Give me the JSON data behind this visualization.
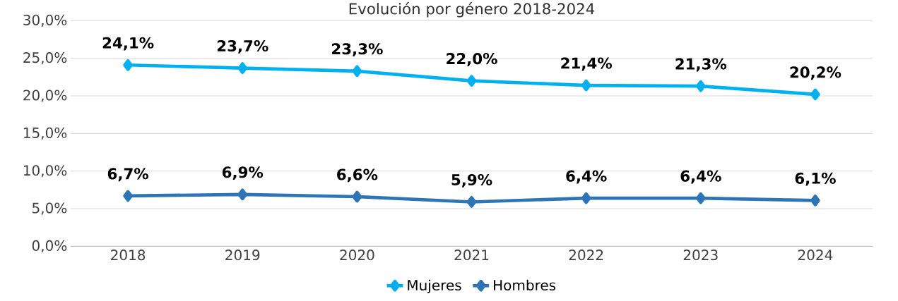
{
  "chart_data": {
    "type": "line",
    "title": "Evolución por género 2018-2024",
    "categories": [
      "2018",
      "2019",
      "2020",
      "2021",
      "2022",
      "2023",
      "2024"
    ],
    "series": [
      {
        "name": "Mujeres",
        "color": "#00b0f0",
        "values": [
          24.1,
          23.7,
          23.3,
          22.0,
          21.4,
          21.3,
          20.2
        ],
        "value_labels": [
          "24,1%",
          "23,7%",
          "23,3%",
          "22,0%",
          "21,4%",
          "21,3%",
          "20,2%"
        ]
      },
      {
        "name": "Hombres",
        "color": "#2e75b6",
        "values": [
          6.7,
          6.9,
          6.6,
          5.9,
          6.4,
          6.4,
          6.1
        ],
        "value_labels": [
          "6,7%",
          "6,9%",
          "6,6%",
          "5,9%",
          "6,4%",
          "6,4%",
          "6,1%"
        ]
      }
    ],
    "ylim": [
      0,
      30
    ],
    "yticks": [
      {
        "value": 0,
        "label": "0,0%"
      },
      {
        "value": 5,
        "label": "5,0%"
      },
      {
        "value": 10,
        "label": "10,0%"
      },
      {
        "value": 15,
        "label": "15,0%"
      },
      {
        "value": 20,
        "label": "20,0%"
      },
      {
        "value": 25,
        "label": "25,0%"
      },
      {
        "value": 30,
        "label": "30,0%"
      }
    ],
    "grid": "y",
    "legend": "bottom",
    "marker": "diamond",
    "line_style": "solid"
  }
}
